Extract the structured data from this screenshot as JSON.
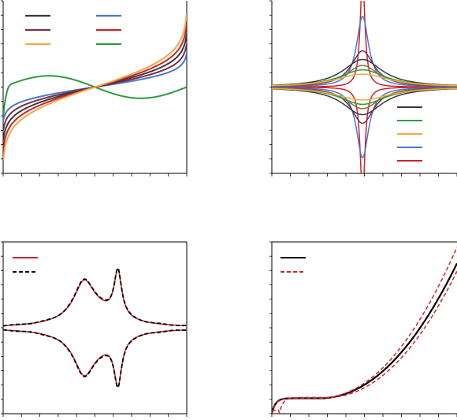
{
  "colors": {
    "gray": "#3a3a3a",
    "purple": "#7b2e4e",
    "orange": "#f5a741",
    "blue": "#4c77c9",
    "red": "#c9252c",
    "green": "#2e9a43",
    "olive": "#8a6f35",
    "black": "#000000",
    "dash_red": "#c9252c"
  },
  "chart_data": [
    {
      "panel": "top-left",
      "type": "line",
      "xlim": [
        -1,
        1
      ],
      "ylim": [
        -1,
        1
      ],
      "grid": false,
      "legend_position": "top-left",
      "series": [
        {
          "color": "green",
          "shape": "wave",
          "amplitude": 0.13
        },
        {
          "color": "blue",
          "shape": "odd",
          "amplitude": 0.3
        },
        {
          "color": "purple",
          "shape": "odd",
          "amplitude": 0.39
        },
        {
          "color": "gray",
          "shape": "odd",
          "amplitude": 0.48
        },
        {
          "color": "red",
          "shape": "odd",
          "amplitude": 0.57
        },
        {
          "color": "orange",
          "shape": "odd",
          "amplitude": 0.66
        }
      ]
    },
    {
      "panel": "top-right",
      "type": "line",
      "xlim": [
        -1,
        1
      ],
      "ylim": [
        -1,
        1
      ],
      "grid": false,
      "legend_position": "bottom-right",
      "series": [
        {
          "color": "red",
          "width": 0.03,
          "peak": 1.3
        },
        {
          "color": "blue",
          "width": 0.08,
          "peak": 0.82
        },
        {
          "color": "purple",
          "width": 0.15,
          "peak": 0.42
        },
        {
          "color": "olive",
          "width": 0.22,
          "peak": 0.25
        },
        {
          "color": "gray",
          "width": 0.26,
          "peak": 0.32
        },
        {
          "color": "green",
          "width": 0.3,
          "peak": 0.2
        },
        {
          "color": "orange",
          "width": 0.35,
          "peak": 0.15
        }
      ],
      "legend_colors": [
        "gray",
        "green",
        "orange",
        "blue",
        "red"
      ]
    },
    {
      "panel": "bottom-left",
      "type": "line",
      "xlim": [
        -1,
        1
      ],
      "ylim": [
        -1,
        1
      ],
      "grid": false,
      "legend_position": "top-left",
      "series": [
        {
          "color": "red",
          "style": "solid"
        },
        {
          "color": "black",
          "style": "dashed"
        }
      ],
      "peaks": [
        {
          "x": -0.12,
          "height": 0.5,
          "width": 0.13
        },
        {
          "x": 0.25,
          "height": 0.68,
          "width": 0.05
        }
      ]
    },
    {
      "panel": "bottom-right",
      "type": "line",
      "xlim": [
        0,
        1
      ],
      "ylim": [
        0,
        1
      ],
      "grid": false,
      "legend_position": "top-left",
      "series": [
        {
          "color": "black",
          "style": "solid",
          "offset": 0
        },
        {
          "color": "dash_red",
          "style": "dashed",
          "offset": 0.04
        },
        {
          "color": "dash_red",
          "style": "dashed",
          "offset": -0.05
        }
      ]
    }
  ]
}
